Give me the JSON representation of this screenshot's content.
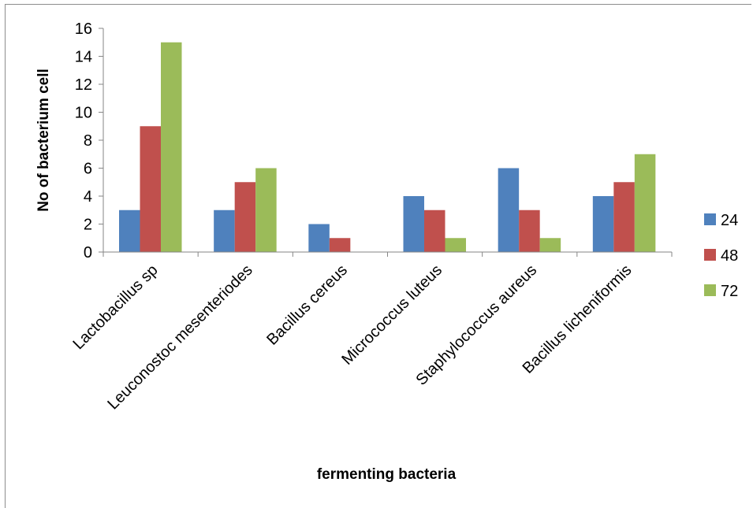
{
  "chart_data": {
    "type": "bar",
    "title": "",
    "xlabel": "fermenting bacteria",
    "ylabel": "No of bacterium cell",
    "ylim": [
      0,
      16
    ],
    "yticks": [
      "0",
      "2",
      "4",
      "6",
      "8",
      "10",
      "12",
      "14",
      "16"
    ],
    "grid": false,
    "legend_position": "right",
    "categories": [
      "Lactobacillus sp",
      "Leuconostoc mesenteriodes",
      "Bacillus cereus",
      "Micrococcus luteus",
      "Staphylococcus aureus",
      "Bacillus licheniformis"
    ],
    "series": [
      {
        "name": "24",
        "color": "#4F81BD",
        "values": [
          3,
          3,
          2,
          4,
          6,
          4
        ]
      },
      {
        "name": "48",
        "color": "#C0504D",
        "values": [
          9,
          5,
          1,
          3,
          3,
          5
        ]
      },
      {
        "name": "72",
        "color": "#9BBB59",
        "values": [
          15,
          6,
          0,
          1,
          1,
          7
        ]
      }
    ]
  }
}
